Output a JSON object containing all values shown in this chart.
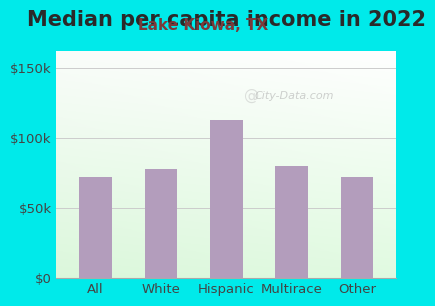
{
  "title": "Median per capita income in 2022",
  "subtitle": "Lake Kiowa, TX",
  "categories": [
    "All",
    "White",
    "Hispanic",
    "Multirace",
    "Other"
  ],
  "values": [
    72000,
    78000,
    113000,
    80000,
    72000
  ],
  "bar_color": "#b39dbc",
  "title_color": "#2a2a2a",
  "subtitle_color": "#7b3a3a",
  "outer_bg": "#00eaea",
  "ylim": [
    0,
    162000
  ],
  "yticks": [
    0,
    50000,
    100000,
    150000
  ],
  "ytick_labels": [
    "$0",
    "$50k",
    "$100k",
    "$150k"
  ],
  "watermark": "City-Data.com",
  "title_fontsize": 15,
  "subtitle_fontsize": 11,
  "tick_fontsize": 9.5
}
